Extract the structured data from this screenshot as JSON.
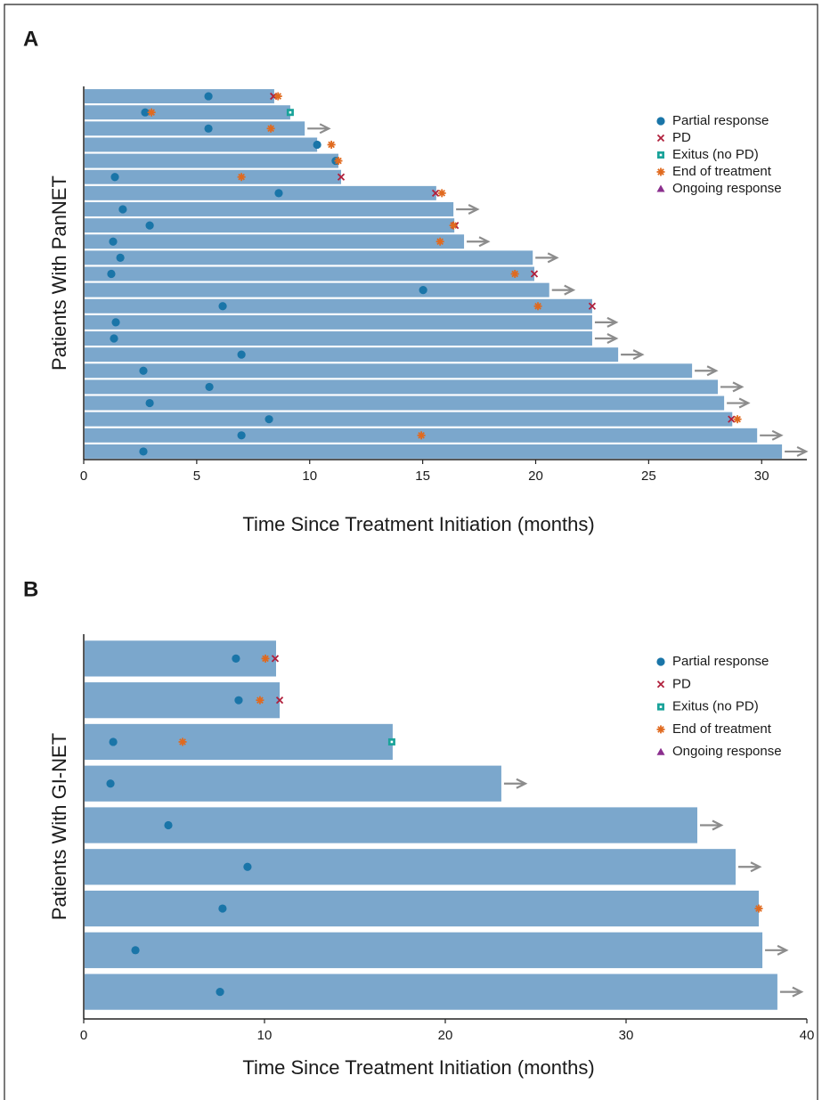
{
  "chart_data": [
    {
      "type": "swimmer",
      "panel": "A",
      "ylabel": "Patients With PanNET",
      "xlabel": "Time Since Treatment Initiation (months)",
      "xlim": [
        0,
        32
      ],
      "xticks": [
        0,
        5,
        10,
        15,
        20,
        25,
        30
      ],
      "bar_color": "#7ba7cc",
      "arrow_color": "#8c8c8c",
      "legend": "upper right",
      "durations": [
        8.43,
        9.14,
        9.78,
        10.33,
        11.27,
        11.39,
        15.6,
        16.36,
        16.4,
        16.83,
        19.87,
        19.94,
        20.6,
        22.5,
        22.5,
        22.5,
        23.65,
        26.92,
        28.06,
        28.34,
        28.7,
        29.8,
        30.9
      ],
      "ongoing": [
        false,
        false,
        true,
        false,
        false,
        false,
        false,
        true,
        false,
        true,
        true,
        false,
        true,
        false,
        true,
        true,
        true,
        true,
        true,
        true,
        false,
        true,
        true
      ],
      "series": [
        {
          "name": "Partial response",
          "color": "#1a75a8",
          "marker": "circle",
          "values": [
            5.52,
            2.72,
            5.52,
            10.33,
            11.15,
            1.38,
            8.63,
            1.73,
            2.92,
            1.3,
            1.62,
            1.22,
            15.02,
            6.15,
            1.42,
            1.34,
            6.98,
            2.64,
            5.56,
            2.92,
            8.2,
            6.98,
            2.64
          ]
        },
        {
          "name": "PD",
          "color": "#b0203c",
          "marker": "cross",
          "values": [
            8.4,
            null,
            null,
            null,
            null,
            11.39,
            15.57,
            null,
            16.44,
            null,
            null,
            19.94,
            null,
            22.5,
            null,
            null,
            null,
            null,
            null,
            null,
            28.66,
            null,
            null
          ]
        },
        {
          "name": "Exitus (no PD)",
          "color": "#1aa39a",
          "marker": "square",
          "values": [
            null,
            9.14,
            null,
            null,
            null,
            null,
            null,
            null,
            null,
            null,
            null,
            null,
            null,
            null,
            null,
            null,
            null,
            null,
            null,
            null,
            null,
            null,
            null
          ]
        },
        {
          "name": "End of treatment",
          "color": "#e06a1f",
          "marker": "star",
          "values": [
            8.6,
            3.0,
            8.28,
            10.96,
            11.27,
            6.98,
            15.85,
            null,
            16.36,
            15.77,
            null,
            19.08,
            null,
            20.1,
            null,
            null,
            null,
            null,
            null,
            null,
            28.93,
            14.94,
            null
          ]
        },
        {
          "name": "Ongoing response",
          "color": "#8b2f8e",
          "marker": "triangle",
          "values": [
            null,
            null,
            null,
            null,
            null,
            null,
            null,
            null,
            null,
            null,
            null,
            null,
            null,
            null,
            null,
            null,
            null,
            null,
            null,
            null,
            null,
            null,
            null
          ]
        }
      ]
    },
    {
      "type": "swimmer",
      "panel": "B",
      "ylabel": "Patients With GI-NET",
      "xlabel": "Time Since Treatment Initiation (months)",
      "xlim": [
        0,
        40
      ],
      "xticks": [
        0,
        10,
        20,
        30,
        40
      ],
      "bar_color": "#7ba7cc",
      "arrow_color": "#8c8c8c",
      "legend": "upper right",
      "durations": [
        10.64,
        10.84,
        17.09,
        23.1,
        33.94,
        36.06,
        37.34,
        37.54,
        38.37
      ],
      "ongoing": [
        false,
        false,
        false,
        true,
        true,
        true,
        false,
        true,
        true
      ],
      "series": [
        {
          "name": "Partial response",
          "color": "#1a75a8",
          "marker": "circle",
          "values": [
            8.42,
            8.57,
            1.63,
            1.48,
            4.68,
            9.06,
            7.68,
            2.86,
            7.54
          ]
        },
        {
          "name": "PD",
          "color": "#b0203c",
          "marker": "cross",
          "values": [
            10.59,
            10.84,
            null,
            null,
            null,
            null,
            null,
            null,
            null
          ]
        },
        {
          "name": "Exitus (no PD)",
          "color": "#1aa39a",
          "marker": "square",
          "values": [
            null,
            null,
            17.04,
            null,
            null,
            null,
            null,
            null,
            null
          ]
        },
        {
          "name": "End of treatment",
          "color": "#e06a1f",
          "marker": "star",
          "values": [
            10.05,
            9.75,
            5.47,
            null,
            null,
            null,
            37.34,
            null,
            null
          ]
        },
        {
          "name": "Ongoing response",
          "color": "#8b2f8e",
          "marker": "triangle",
          "values": [
            null,
            null,
            null,
            null,
            null,
            null,
            null,
            null,
            null
          ]
        }
      ]
    }
  ]
}
